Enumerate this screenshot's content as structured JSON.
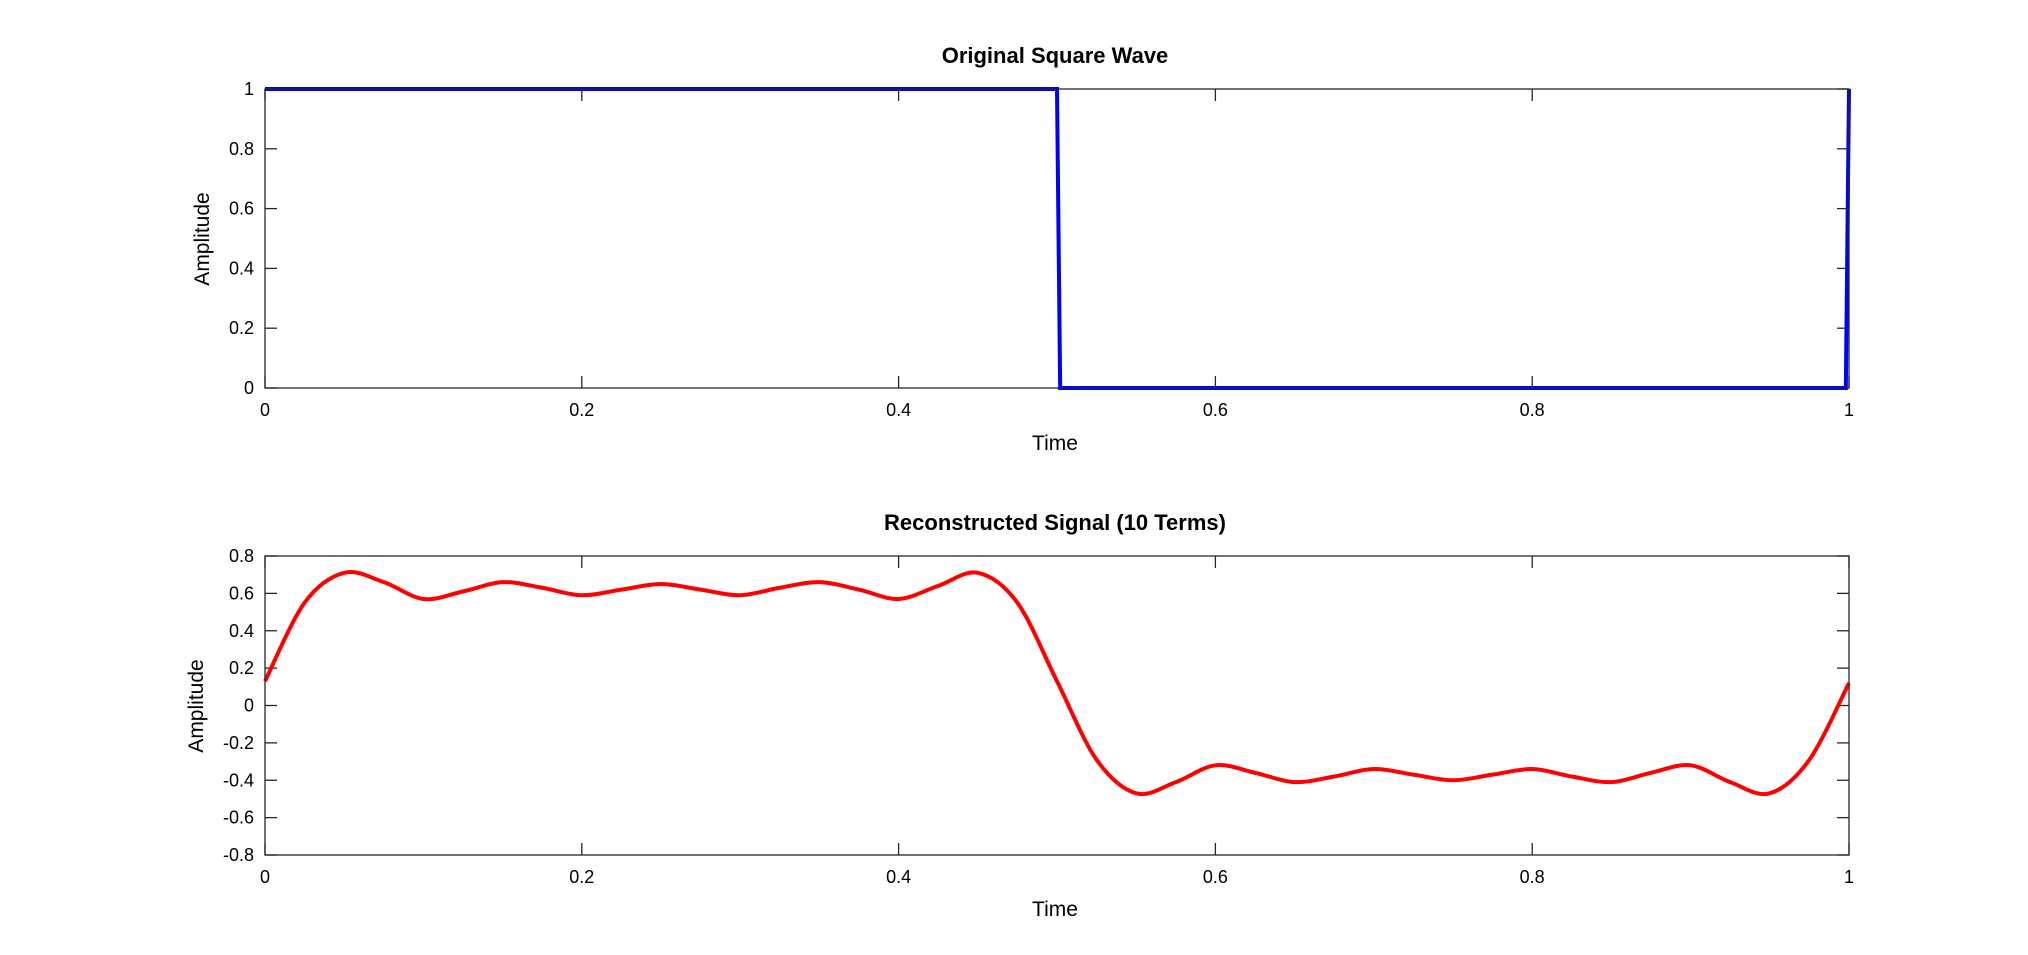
{
  "chart_data": [
    {
      "type": "line",
      "title": "Original Square Wave",
      "xlabel": "Time",
      "ylabel": "Amplitude",
      "xlim": [
        0,
        1
      ],
      "ylim": [
        0,
        1
      ],
      "xticks": [
        0,
        0.2,
        0.4,
        0.6,
        0.8,
        1
      ],
      "xtick_labels": [
        "0",
        "0.2",
        "0.4",
        "0.6",
        "0.8",
        "1"
      ],
      "yticks": [
        0,
        0.2,
        0.4,
        0.6,
        0.8,
        1
      ],
      "ytick_labels": [
        "0",
        "0.2",
        "0.4",
        "0.6",
        "0.8",
        "1"
      ],
      "grid": false,
      "series": [
        {
          "color": "#0000ff",
          "x": [
            0,
            0.1,
            0.2,
            0.3,
            0.4,
            0.5,
            0.502,
            0.6,
            0.7,
            0.8,
            0.9,
            0.998,
            1.0
          ],
          "y": [
            1,
            1,
            1,
            1,
            1,
            1,
            0,
            0,
            0,
            0,
            0,
            0,
            1
          ]
        }
      ]
    },
    {
      "type": "line",
      "title": "Reconstructed Signal (10 Terms)",
      "xlabel": "Time",
      "ylabel": "Amplitude",
      "xlim": [
        0,
        1
      ],
      "ylim": [
        -0.8,
        0.8
      ],
      "xticks": [
        0,
        0.2,
        0.4,
        0.6,
        0.8,
        1
      ],
      "xtick_labels": [
        "0",
        "0.2",
        "0.4",
        "0.6",
        "0.8",
        "1"
      ],
      "yticks": [
        -0.8,
        -0.6,
        -0.4,
        -0.2,
        0,
        0.2,
        0.4,
        0.6,
        0.8
      ],
      "ytick_labels": [
        "-0.8",
        "-0.6",
        "-0.4",
        "-0.2",
        "0",
        "0.2",
        "0.4",
        "0.6",
        "0.8"
      ],
      "grid": false,
      "series": [
        {
          "color": "#ff0000",
          "x": [
            0,
            0.025,
            0.05,
            0.075,
            0.1,
            0.125,
            0.15,
            0.175,
            0.2,
            0.225,
            0.25,
            0.275,
            0.3,
            0.325,
            0.35,
            0.375,
            0.4,
            0.425,
            0.45,
            0.475,
            0.5,
            0.525,
            0.55,
            0.575,
            0.6,
            0.625,
            0.65,
            0.675,
            0.7,
            0.725,
            0.75,
            0.775,
            0.8,
            0.825,
            0.85,
            0.875,
            0.9,
            0.925,
            0.95,
            0.975,
            1.0
          ],
          "y": [
            0.13,
            0.55,
            0.71,
            0.66,
            0.57,
            0.61,
            0.66,
            0.63,
            0.59,
            0.62,
            0.65,
            0.62,
            0.59,
            0.63,
            0.66,
            0.62,
            0.57,
            0.64,
            0.71,
            0.55,
            0.13,
            -0.29,
            -0.47,
            -0.41,
            -0.32,
            -0.36,
            -0.41,
            -0.38,
            -0.34,
            -0.37,
            -0.4,
            -0.37,
            -0.34,
            -0.38,
            -0.41,
            -0.36,
            -0.32,
            -0.41,
            -0.47,
            -0.29,
            0.12
          ]
        }
      ]
    }
  ]
}
